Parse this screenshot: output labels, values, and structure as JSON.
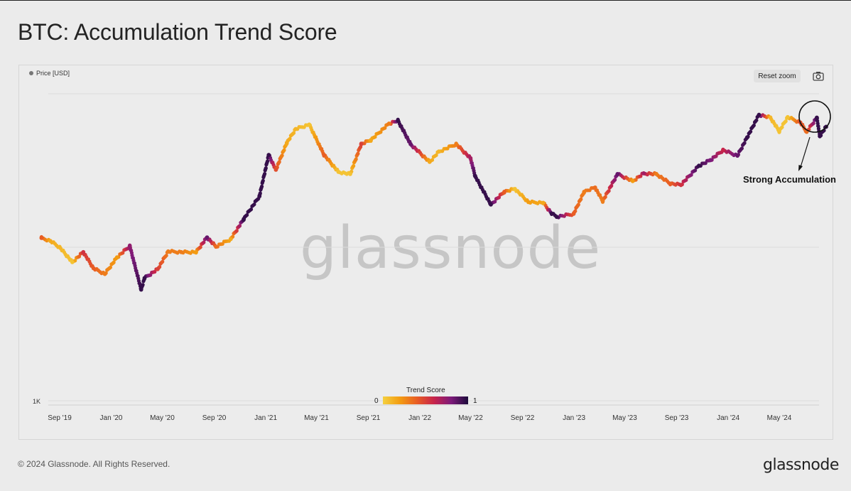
{
  "page": {
    "title": "BTC: Accumulation Trend Score",
    "copyright": "© 2024 Glassnode. All Rights Reserved.",
    "brand": "glassnode",
    "watermark": "glassnode"
  },
  "toolbar": {
    "legend_label": "Price [USD]",
    "reset_zoom_label": "Reset zoom",
    "camera_icon": "camera-icon"
  },
  "annotation": {
    "text": "Strong Accumulation"
  },
  "colorscale": {
    "title": "Trend Score",
    "min_label": "0",
    "max_label": "1",
    "colors": [
      "#f4d03f",
      "#f39c12",
      "#e85d24",
      "#c7244b",
      "#7d1a7a",
      "#1d0b3b"
    ]
  },
  "chart_data": {
    "type": "scatter",
    "title": "BTC: Accumulation Trend Score",
    "y_scale": "log",
    "y_tick_labels": [
      {
        "value": 1000,
        "label": "1K"
      }
    ],
    "x_tick_labels": [
      "Sep '19",
      "Jan '20",
      "May '20",
      "Sep '20",
      "Jan '21",
      "May '21",
      "Sep '21",
      "Jan '22",
      "May '22",
      "Sep '22",
      "Jan '23",
      "May '23",
      "Sep '23",
      "Jan '24",
      "May '24"
    ],
    "x_tick_dates": [
      "2019-09-01",
      "2020-01-01",
      "2020-05-01",
      "2020-09-01",
      "2021-01-01",
      "2021-05-01",
      "2021-09-01",
      "2022-01-01",
      "2022-05-01",
      "2022-09-01",
      "2023-01-01",
      "2023-05-01",
      "2023-09-01",
      "2024-01-01",
      "2024-05-01"
    ],
    "series": [
      {
        "name": "Price [USD]",
        "x": [
          "2019-07-20",
          "2019-08-10",
          "2019-09-01",
          "2019-10-01",
          "2019-10-27",
          "2019-11-20",
          "2019-12-17",
          "2020-01-15",
          "2020-02-14",
          "2020-03-12",
          "2020-03-20",
          "2020-04-20",
          "2020-05-15",
          "2020-06-15",
          "2020-07-20",
          "2020-08-15",
          "2020-09-05",
          "2020-10-10",
          "2020-11-10",
          "2020-12-17",
          "2021-01-08",
          "2021-01-25",
          "2021-02-20",
          "2021-03-13",
          "2021-04-14",
          "2021-05-19",
          "2021-06-22",
          "2021-07-20",
          "2021-08-15",
          "2021-09-07",
          "2021-10-20",
          "2021-11-10",
          "2021-12-10",
          "2022-01-24",
          "2022-02-15",
          "2022-03-28",
          "2022-05-01",
          "2022-05-12",
          "2022-06-18",
          "2022-07-20",
          "2022-08-14",
          "2022-09-15",
          "2022-10-20",
          "2022-11-09",
          "2022-11-21",
          "2022-12-31",
          "2023-01-25",
          "2023-02-20",
          "2023-03-10",
          "2023-04-14",
          "2023-05-20",
          "2023-06-15",
          "2023-07-15",
          "2023-08-17",
          "2023-09-11",
          "2023-10-24",
          "2023-11-20",
          "2023-12-20",
          "2024-01-23",
          "2024-02-15",
          "2024-03-14",
          "2024-04-10",
          "2024-05-01",
          "2024-05-21",
          "2024-06-20",
          "2024-07-05",
          "2024-07-29",
          "2024-08-05",
          "2024-08-20"
        ],
        "y": [
          11500,
          11000,
          10000,
          8000,
          9300,
          7300,
          6700,
          8600,
          10200,
          5300,
          6300,
          7200,
          9400,
          9300,
          9300,
          11600,
          10100,
          11300,
          15300,
          21500,
          40000,
          32000,
          48000,
          59000,
          63000,
          40000,
          31000,
          30000,
          47000,
          50000,
          64000,
          67000,
          47000,
          36000,
          42000,
          47000,
          38000,
          29000,
          19000,
          23000,
          24000,
          19700,
          19500,
          16600,
          15800,
          16500,
          23000,
          24500,
          20000,
          30000,
          27000,
          30300,
          30000,
          26000,
          25500,
          34000,
          37000,
          43000,
          39500,
          52000,
          73000,
          70000,
          57000,
          70500,
          65000,
          56500,
          70000,
          53000,
          61000
        ],
        "trend_score": [
          0.4,
          0.15,
          0.1,
          0.05,
          0.55,
          0.4,
          0.3,
          0.2,
          0.75,
          0.95,
          0.95,
          0.5,
          0.3,
          0.3,
          0.2,
          0.85,
          0.35,
          0.15,
          0.95,
          0.95,
          0.95,
          0.45,
          0.15,
          0.1,
          0.05,
          0.4,
          0.05,
          0.05,
          0.5,
          0.15,
          0.3,
          0.95,
          0.85,
          0.15,
          0.1,
          0.3,
          0.7,
          0.95,
          0.95,
          0.4,
          0.05,
          0.2,
          0.15,
          0.95,
          0.95,
          0.4,
          0.3,
          0.35,
          0.3,
          0.85,
          0.2,
          0.7,
          0.3,
          0.4,
          0.55,
          0.95,
          0.8,
          0.6,
          0.85,
          0.95,
          0.95,
          0.1,
          0.05,
          0.05,
          0.45,
          0.35,
          0.95,
          0.95,
          0.95
        ]
      }
    ],
    "colorbar": {
      "title": "Trend Score",
      "min": 0,
      "max": 1
    },
    "annotations": [
      {
        "text": "Strong Accumulation"
      }
    ],
    "legend_placement": "top-left",
    "grid": true
  }
}
